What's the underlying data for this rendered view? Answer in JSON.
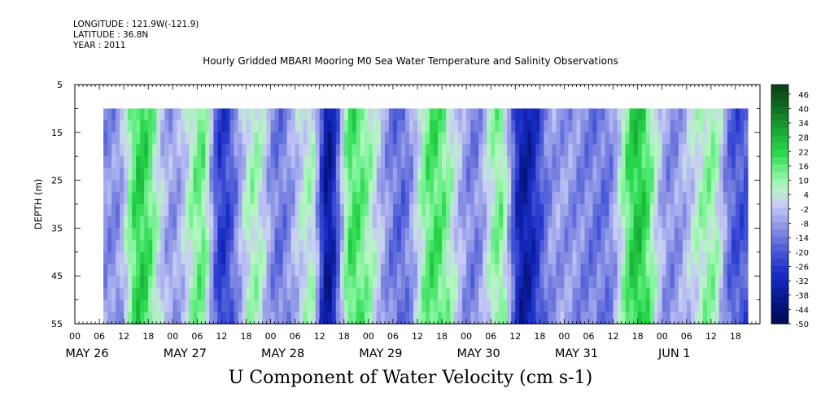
{
  "header": {
    "longitude": "LONGITUDE : 121.9W(-121.9)",
    "latitude": "LATITUDE : 36.8N",
    "year": "YEAR : 2011"
  },
  "chart_data": {
    "type": "heatmap",
    "title": "Hourly Gridded MBARI Mooring M0 Sea Water Temperature and Salinity Observations",
    "xlabel": "U Component of Water Velocity (cm s-1)",
    "ylabel": "DEPTH (m)",
    "y_range": [
      5,
      55
    ],
    "y_ticks": [
      "5",
      "15",
      "25",
      "35",
      "45",
      "55"
    ],
    "data_depth_range": [
      10,
      55
    ],
    "x_hour_labels": [
      "00",
      "06",
      "12",
      "18",
      "00",
      "06",
      "12",
      "18",
      "00",
      "06",
      "12",
      "18",
      "00",
      "06",
      "12",
      "18",
      "00",
      "06",
      "12",
      "18",
      "00",
      "06",
      "12",
      "18",
      "00",
      "06",
      "12",
      "18"
    ],
    "x_day_labels": [
      "MAY 26",
      "MAY 27",
      "MAY 28",
      "MAY 29",
      "MAY 30",
      "MAY 31",
      "JUN  1"
    ],
    "data_start_hour": 7,
    "data_end_hour": 165,
    "colorbar": {
      "labels": [
        "46",
        "40",
        "34",
        "28",
        "22",
        "16",
        "10",
        "4",
        "-2",
        "-8",
        "-14",
        "-20",
        "-26",
        "-32",
        "-38",
        "-44",
        "-50"
      ],
      "min": -50,
      "max": 50,
      "levels": 33,
      "colors_top_to_bottom": [
        "#0b3f12",
        "#0f5e1c",
        "#148a2a",
        "#1bb43a",
        "#2ad84c",
        "#6df08c",
        "#b4f7c0",
        "#c8cdf5",
        "#9ca3ea",
        "#6d78dd",
        "#3f50d6",
        "#1c2fc7",
        "#0d1ea6",
        "#06127a",
        "#030950"
      ]
    },
    "velocity_bands": [
      {
        "hour": 10,
        "value": -10
      },
      {
        "hour": 16,
        "value": 22
      },
      {
        "hour": 24,
        "value": -8
      },
      {
        "hour": 31,
        "value": 14
      },
      {
        "hour": 36,
        "value": -26
      },
      {
        "hour": 44,
        "value": 8
      },
      {
        "hour": 50,
        "value": -14
      },
      {
        "hour": 58,
        "value": 6
      },
      {
        "hour": 62,
        "value": -38
      },
      {
        "hour": 68,
        "value": 18
      },
      {
        "hour": 80,
        "value": -16
      },
      {
        "hour": 88,
        "value": 18
      },
      {
        "hour": 98,
        "value": -12
      },
      {
        "hour": 104,
        "value": 12
      },
      {
        "hour": 110,
        "value": -36
      },
      {
        "hour": 118,
        "value": -8
      },
      {
        "hour": 130,
        "value": -14
      },
      {
        "hour": 138,
        "value": 24
      },
      {
        "hour": 146,
        "value": -10
      },
      {
        "hour": 156,
        "value": 10
      },
      {
        "hour": 162,
        "value": -20
      }
    ]
  }
}
